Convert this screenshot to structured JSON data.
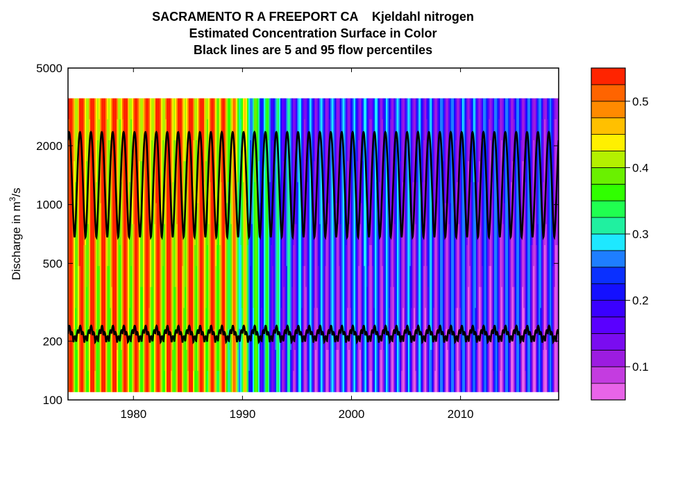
{
  "chart_data": {
    "type": "heatmap",
    "title_lines": [
      "SACRAMENTO R A FREEPORT CA    Kjeldahl nitrogen",
      "Estimated Concentration Surface in Color",
      "Black lines are 5 and 95 flow percentiles"
    ],
    "ylabel_main": "Discharge in m",
    "ylabel_sup": "3",
    "ylabel_tail": "/s",
    "x_range": [
      1974,
      2019
    ],
    "y_range": [
      100,
      5000
    ],
    "y_scale": "log",
    "x_ticks": [
      1980,
      1990,
      2000,
      2010
    ],
    "y_ticks": [
      100,
      200,
      500,
      1000,
      2000,
      5000
    ],
    "surface_q_range": [
      110,
      3500
    ],
    "period_trend": [
      {
        "year": 1974,
        "value": 0.48
      },
      {
        "year": 1980,
        "value": 0.47
      },
      {
        "year": 1985,
        "value": 0.48
      },
      {
        "year": 1988,
        "value": 0.46
      },
      {
        "year": 1989.5,
        "value": 0.4
      },
      {
        "year": 1991,
        "value": 0.31
      },
      {
        "year": 1993,
        "value": 0.24
      },
      {
        "year": 1996,
        "value": 0.19
      },
      {
        "year": 2000,
        "value": 0.19
      },
      {
        "year": 2010,
        "value": 0.18
      },
      {
        "year": 2019,
        "value": 0.17
      }
    ],
    "seasonal_amplitude": 0.11,
    "p95_flow": {
      "min": 680,
      "max": 2350
    },
    "p5_flow": {
      "min": 195,
      "max": 240
    },
    "colorbar": {
      "levels": [
        0.05,
        0.075,
        0.1,
        0.125,
        0.15,
        0.175,
        0.2,
        0.225,
        0.25,
        0.275,
        0.3,
        0.325,
        0.35,
        0.375,
        0.4,
        0.425,
        0.45,
        0.475,
        0.5,
        0.525,
        0.55
      ],
      "colors": [
        "#E864E8",
        "#C43CE0",
        "#9C1CE0",
        "#7A0CF0",
        "#5A00FF",
        "#3A00FF",
        "#1410FF",
        "#0A30FF",
        "#1E7EFF",
        "#1EE8FF",
        "#20F0A0",
        "#20FF50",
        "#30FF00",
        "#6AF000",
        "#B4F000",
        "#FFF000",
        "#FFC000",
        "#FF8A00",
        "#FF6400",
        "#FF2400"
      ],
      "tick_labels": [
        "0.1",
        "0.2",
        "0.3",
        "0.4",
        "0.5"
      ],
      "tick_values": [
        0.1,
        0.2,
        0.3,
        0.4,
        0.5
      ]
    }
  }
}
